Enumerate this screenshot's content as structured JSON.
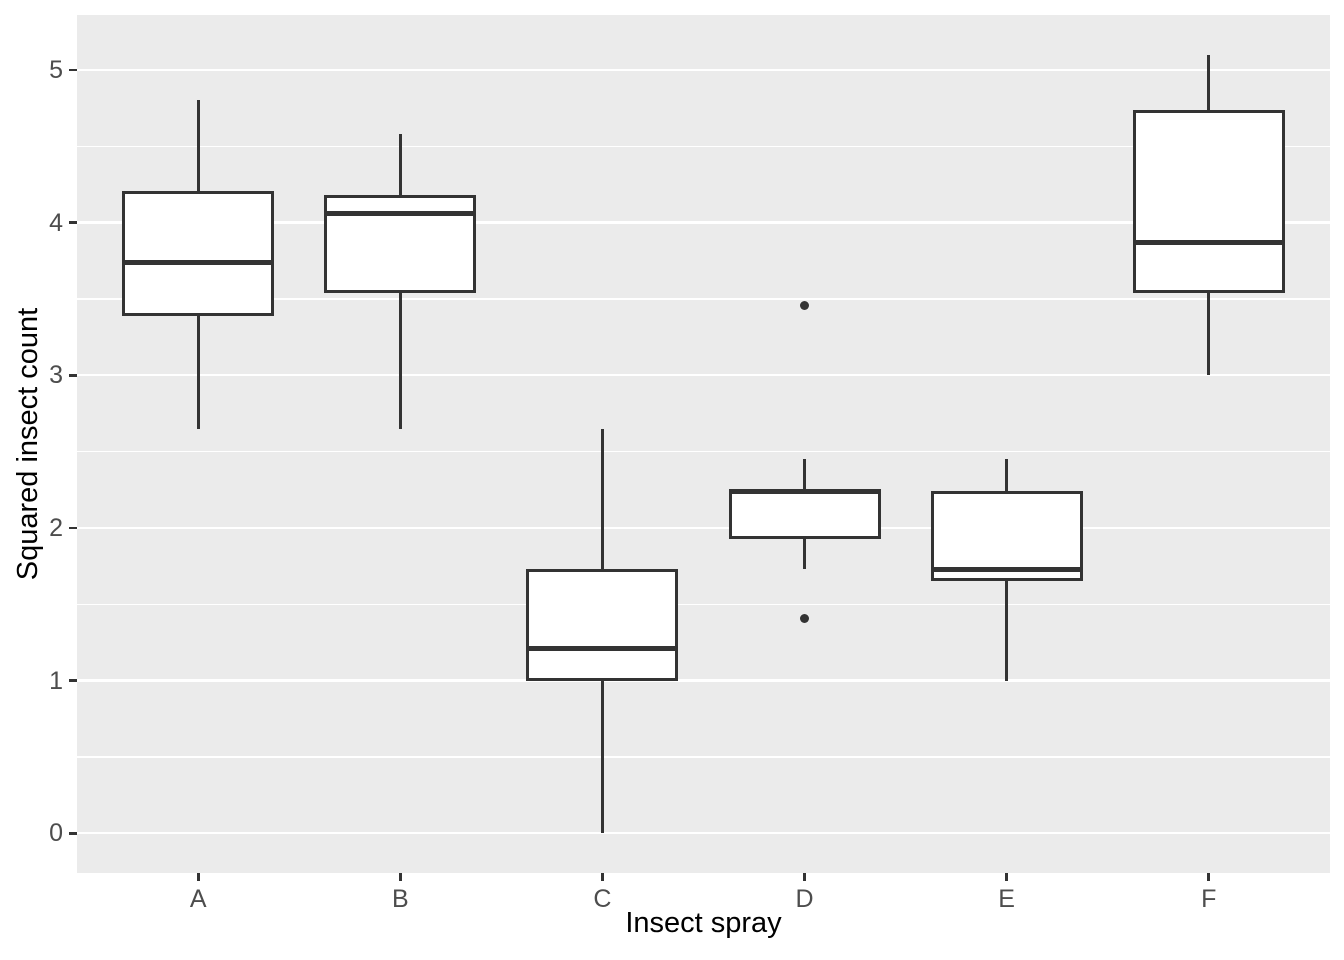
{
  "chart_data": {
    "type": "boxplot",
    "xlabel": "Insect spray",
    "ylabel": "Squared insect count",
    "categories": [
      "A",
      "B",
      "C",
      "D",
      "E",
      "F"
    ],
    "series": [
      {
        "category": "A",
        "lower_whisker": 2.65,
        "q1": 3.39,
        "median": 3.74,
        "q3": 4.21,
        "upper_whisker": 4.8,
        "outliers": []
      },
      {
        "category": "B",
        "lower_whisker": 2.65,
        "q1": 3.54,
        "median": 4.06,
        "q3": 4.18,
        "upper_whisker": 4.58,
        "outliers": []
      },
      {
        "category": "C",
        "lower_whisker": 0.0,
        "q1": 1.0,
        "median": 1.21,
        "q3": 1.73,
        "upper_whisker": 2.65,
        "outliers": []
      },
      {
        "category": "D",
        "lower_whisker": 1.73,
        "q1": 1.93,
        "median": 2.24,
        "q3": 2.24,
        "upper_whisker": 2.45,
        "outliers": [
          3.46,
          1.41
        ]
      },
      {
        "category": "E",
        "lower_whisker": 1.0,
        "q1": 1.65,
        "median": 1.73,
        "q3": 2.24,
        "upper_whisker": 2.45,
        "outliers": []
      },
      {
        "category": "F",
        "lower_whisker": 3.0,
        "q1": 3.54,
        "median": 3.87,
        "q3": 4.74,
        "upper_whisker": 5.1,
        "outliers": []
      }
    ],
    "y_ticks": [
      0,
      1,
      2,
      3,
      4,
      5
    ],
    "y_minor_ticks": [
      0.5,
      1.5,
      2.5,
      3.5,
      4.5
    ],
    "ylim": [
      -0.26,
      5.36
    ],
    "grid": true,
    "legend": false,
    "box_width_fraction": 0.75
  },
  "colors": {
    "panel_bg": "#EBEBEB",
    "grid": "#FFFFFF",
    "box_stroke": "#333333",
    "box_fill": "#FFFFFF",
    "outlier": "#333333",
    "tick_mark": "#333333",
    "tick_label": "#4D4D4D",
    "axis_title": "#000000"
  }
}
